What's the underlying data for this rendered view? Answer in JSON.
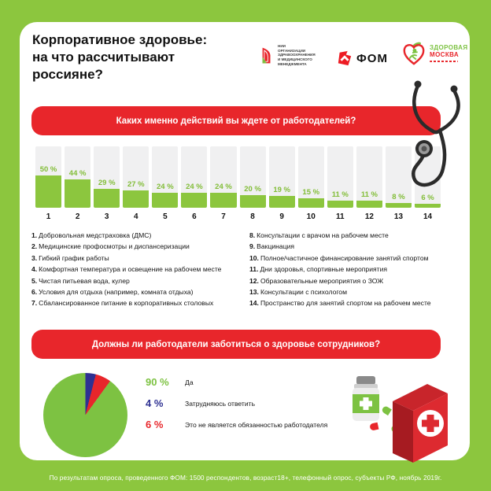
{
  "header": {
    "title": "Корпоративное здоровье:\nна что рассчитывают\nроссияне?",
    "logos": {
      "nii": {
        "text": "НИИ\nорганизации\nздравоохранения\nи медицинского\nменеджмента"
      },
      "fom": {
        "text": "ФОМ"
      },
      "zm": {
        "line1": "ЗДОРОВАЯ",
        "line2": "МОСКВА"
      }
    }
  },
  "chart_data": [
    {
      "type": "bar",
      "title": "Каких именно действий вы ждете от работодателей?",
      "categories": [
        "1",
        "2",
        "3",
        "4",
        "5",
        "6",
        "7",
        "8",
        "9",
        "10",
        "11",
        "12",
        "13",
        "14"
      ],
      "values": [
        50,
        44,
        29,
        27,
        24,
        24,
        24,
        20,
        19,
        15,
        11,
        11,
        8,
        6
      ],
      "value_labels": [
        "50 %",
        "44 %",
        "29 %",
        "27 %",
        "24 %",
        "24 %",
        "24 %",
        "20 %",
        "19 %",
        "15 %",
        "11 %",
        "11 %",
        "8 %",
        "6 %"
      ],
      "ylim": [
        0,
        100
      ],
      "bar_color": "#8CC63E",
      "track_color": "#F0F0F1",
      "grid": false,
      "category_descriptions": [
        "Добровольная медстраховка (ДМС)",
        "Медицинские профосмотры и диспансеризации",
        "Гибкий график работы",
        "Комфортная температура и освещение на рабочем месте",
        "Чистая питьевая вода, кулер",
        "Условия для отдыха (например, комната отдыха)",
        "Сбалансированное питание в корпоративных столовых",
        "Консультации с врачом на рабочем месте",
        "Вакцинация",
        "Полное/частичное финансирование занятий спортом",
        "Дни здоровья, спортивные мероприятия",
        "Образовательные мероприятия о ЗОЖ",
        "Консультации с психологом",
        "Пространство для занятий спортом на рабочем месте"
      ]
    },
    {
      "type": "pie",
      "title": "Должны ли работодатели заботиться о здоровье сотрудников?",
      "slices": [
        {
          "label": "Да",
          "value": 90,
          "display": "90 %",
          "color": "#7DC242"
        },
        {
          "label": "Затрудняюсь ответить",
          "value": 4,
          "display": "4 %",
          "color": "#2E3192"
        },
        {
          "label": "Это не является обязанностью работодателя",
          "value": 6,
          "display": "6 %",
          "color": "#E8262B"
        }
      ],
      "draw_order": [
        1,
        2,
        0
      ],
      "start_angle_deg": 0,
      "legend_position": "right"
    }
  ],
  "footer": {
    "text": "По результатам опроса, проведенного ФОМ: 1500 респондентов, возраст18+, телефонный опрос, субъекты РФ, ноябрь 2019г."
  },
  "colors": {
    "page_green": "#8CC63E",
    "banner_red": "#E8262B",
    "bar_green": "#8CC63E",
    "track_gray": "#F0F0F1",
    "pie_green": "#7DC242",
    "pie_blue": "#2E3192",
    "pie_red": "#E8262B"
  },
  "icons": [
    "nii-logo-icon",
    "fom-logo-icon",
    "zdorovaya-moskva-logo-icon",
    "stethoscope-icon",
    "pill-bottle-icon",
    "capsules-icon",
    "first-aid-kit-icon"
  ]
}
